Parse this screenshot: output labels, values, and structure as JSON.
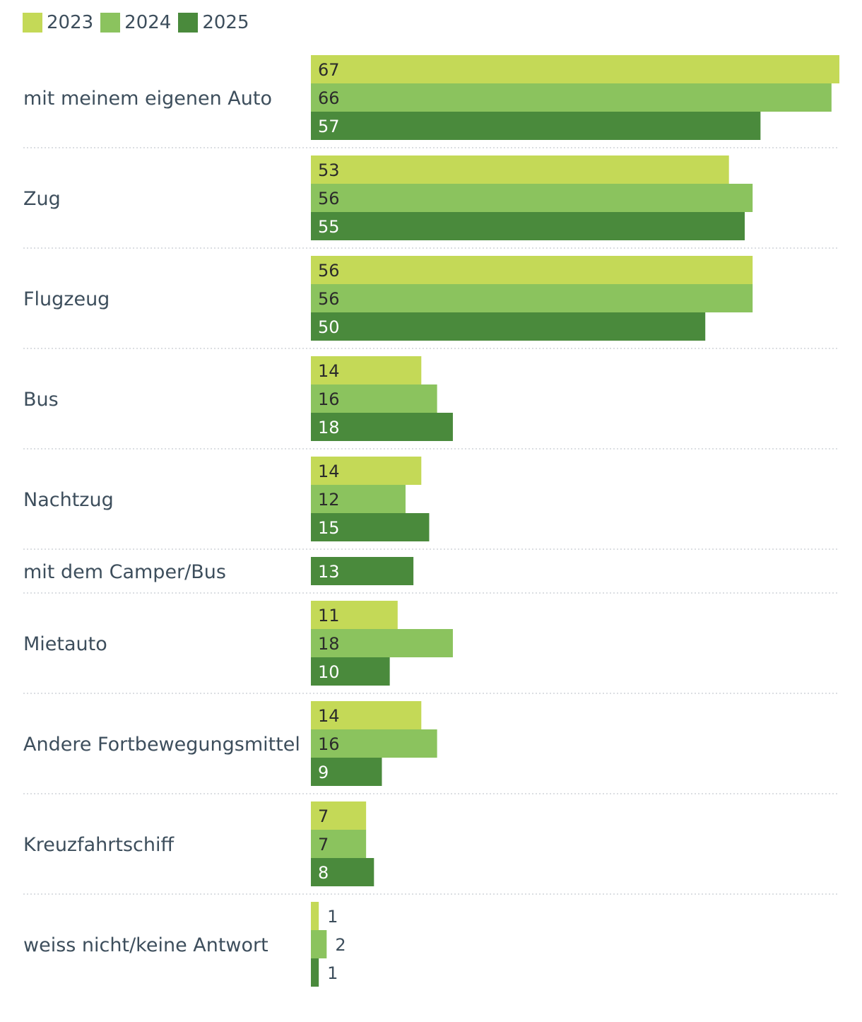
{
  "chart_data": {
    "type": "bar",
    "orientation": "horizontal",
    "title": "",
    "xlabel": "",
    "ylabel": "",
    "xlim": [
      0,
      67
    ],
    "legend_position": "top-left",
    "categories": [
      "mit meinem eigenen Auto",
      "Zug",
      "Flugzeug",
      "Bus",
      "Nachtzug",
      "mit dem Camper/Bus",
      "Mietauto",
      "Andere Fortbewegungsmittel",
      "Kreuzfahrtschiff",
      "weiss nicht/keine Antwort"
    ],
    "series": [
      {
        "name": "2023",
        "color": "#c4d957",
        "label_color": "#2b2b2b",
        "values": [
          67,
          53,
          56,
          14,
          14,
          null,
          11,
          14,
          7,
          1
        ]
      },
      {
        "name": "2024",
        "color": "#8bc35e",
        "label_color": "#2b2b2b",
        "values": [
          66,
          56,
          56,
          16,
          12,
          null,
          18,
          16,
          7,
          2
        ]
      },
      {
        "name": "2025",
        "color": "#4a8a3c",
        "label_color": "#ffffff",
        "values": [
          57,
          55,
          50,
          18,
          15,
          13,
          10,
          9,
          8,
          1
        ]
      }
    ]
  }
}
